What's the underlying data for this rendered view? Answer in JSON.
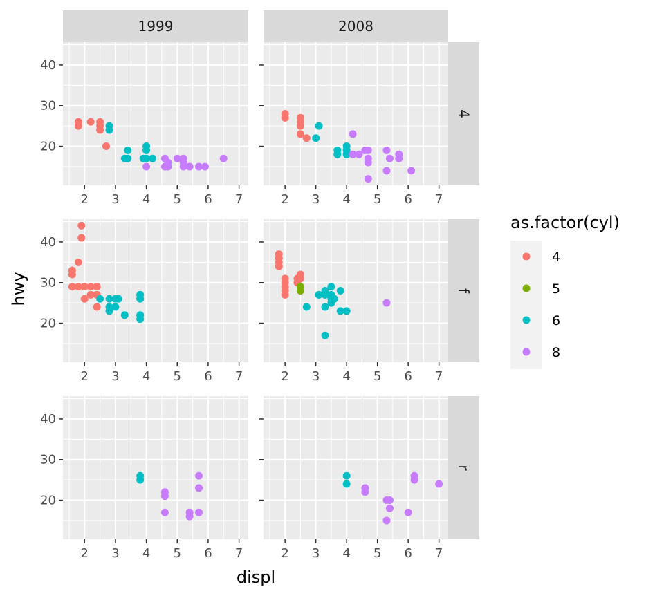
{
  "chart_data": {
    "type": "scatter",
    "xlabel": "displ",
    "ylabel": "hwy",
    "xlim": [
      1.3,
      7.3
    ],
    "ylim": [
      10.4,
      45.6
    ],
    "xticks": [
      2,
      3,
      4,
      5,
      6,
      7
    ],
    "yticks": [
      20,
      30,
      40
    ],
    "facet_cols": [
      "1999",
      "2008"
    ],
    "facet_rows": [
      "4",
      "f",
      "r"
    ],
    "legend": {
      "title": "as.factor(cyl)",
      "position": "right",
      "items": [
        {
          "label": "4",
          "color": "#F8766D"
        },
        {
          "label": "5",
          "color": "#7CAE00"
        },
        {
          "label": "6",
          "color": "#00BFC4"
        },
        {
          "label": "8",
          "color": "#C77CFF"
        }
      ]
    },
    "panels": [
      {
        "col": "1999",
        "row": "4",
        "points": [
          [
            1.8,
            26,
            "4"
          ],
          [
            1.8,
            25,
            "4"
          ],
          [
            2.2,
            26,
            "4"
          ],
          [
            2.5,
            26,
            "4"
          ],
          [
            2.5,
            25,
            "4"
          ],
          [
            2.5,
            24,
            "4"
          ],
          [
            2.7,
            20,
            "4"
          ],
          [
            2.8,
            25,
            "6"
          ],
          [
            2.8,
            24,
            "6"
          ],
          [
            3.4,
            19,
            "6"
          ],
          [
            3.3,
            17,
            "6"
          ],
          [
            3.4,
            17,
            "6"
          ],
          [
            4.0,
            20,
            "6"
          ],
          [
            4.0,
            19,
            "6"
          ],
          [
            4.0,
            17,
            "6"
          ],
          [
            3.9,
            17,
            "6"
          ],
          [
            4.2,
            17,
            "6"
          ],
          [
            4.0,
            15,
            "8"
          ],
          [
            4.6,
            17,
            "8"
          ],
          [
            4.6,
            15,
            "8"
          ],
          [
            4.7,
            16,
            "8"
          ],
          [
            4.7,
            15,
            "8"
          ],
          [
            5.0,
            17,
            "8"
          ],
          [
            5.2,
            17,
            "8"
          ],
          [
            5.2,
            16,
            "8"
          ],
          [
            5.2,
            15,
            "8"
          ],
          [
            5.4,
            15,
            "8"
          ],
          [
            5.7,
            15,
            "8"
          ],
          [
            5.9,
            15,
            "8"
          ],
          [
            6.5,
            17,
            "8"
          ]
        ]
      },
      {
        "col": "2008",
        "row": "4",
        "points": [
          [
            2.0,
            28,
            "4"
          ],
          [
            2.0,
            27,
            "4"
          ],
          [
            2.5,
            27,
            "4"
          ],
          [
            2.5,
            26,
            "4"
          ],
          [
            2.5,
            25,
            "4"
          ],
          [
            2.5,
            23,
            "4"
          ],
          [
            2.7,
            22,
            "4"
          ],
          [
            3.0,
            22,
            "6"
          ],
          [
            3.1,
            25,
            "6"
          ],
          [
            3.7,
            19,
            "6"
          ],
          [
            3.7,
            18,
            "6"
          ],
          [
            4.0,
            20,
            "6"
          ],
          [
            4.0,
            19,
            "6"
          ],
          [
            4.0,
            18,
            "6"
          ],
          [
            4.2,
            23,
            "8"
          ],
          [
            4.2,
            18,
            "8"
          ],
          [
            4.4,
            18,
            "8"
          ],
          [
            4.6,
            19,
            "8"
          ],
          [
            4.7,
            19,
            "8"
          ],
          [
            4.7,
            17,
            "8"
          ],
          [
            4.7,
            16,
            "8"
          ],
          [
            4.7,
            12,
            "8"
          ],
          [
            5.3,
            19,
            "8"
          ],
          [
            5.3,
            14,
            "8"
          ],
          [
            5.4,
            17,
            "8"
          ],
          [
            5.7,
            18,
            "8"
          ],
          [
            5.7,
            17,
            "8"
          ],
          [
            6.1,
            14,
            "8"
          ]
        ]
      },
      {
        "col": "1999",
        "row": "f",
        "points": [
          [
            1.6,
            33,
            "4"
          ],
          [
            1.6,
            32,
            "4"
          ],
          [
            1.6,
            29,
            "4"
          ],
          [
            1.8,
            35,
            "4"
          ],
          [
            1.8,
            29,
            "4"
          ],
          [
            1.9,
            44,
            "4"
          ],
          [
            1.9,
            41,
            "4"
          ],
          [
            2.0,
            29,
            "4"
          ],
          [
            2.0,
            26,
            "4"
          ],
          [
            2.2,
            29,
            "4"
          ],
          [
            2.2,
            27,
            "4"
          ],
          [
            2.4,
            29,
            "4"
          ],
          [
            2.4,
            27,
            "4"
          ],
          [
            2.4,
            24,
            "4"
          ],
          [
            2.5,
            26,
            "6"
          ],
          [
            2.8,
            26,
            "6"
          ],
          [
            2.8,
            24,
            "6"
          ],
          [
            2.8,
            23,
            "6"
          ],
          [
            3.0,
            26,
            "6"
          ],
          [
            3.0,
            24,
            "6"
          ],
          [
            3.1,
            26,
            "6"
          ],
          [
            3.3,
            22,
            "6"
          ],
          [
            3.8,
            27,
            "6"
          ],
          [
            3.8,
            26,
            "6"
          ],
          [
            3.8,
            22,
            "6"
          ],
          [
            3.8,
            21,
            "6"
          ]
        ]
      },
      {
        "col": "2008",
        "row": "f",
        "points": [
          [
            1.8,
            37,
            "4"
          ],
          [
            1.8,
            36,
            "4"
          ],
          [
            1.8,
            35,
            "4"
          ],
          [
            1.8,
            34,
            "4"
          ],
          [
            2.0,
            31,
            "4"
          ],
          [
            2.0,
            30,
            "4"
          ],
          [
            2.0,
            29,
            "4"
          ],
          [
            2.0,
            28,
            "4"
          ],
          [
            2.0,
            27,
            "4"
          ],
          [
            2.4,
            31,
            "4"
          ],
          [
            2.4,
            30,
            "4"
          ],
          [
            2.5,
            32,
            "4"
          ],
          [
            2.5,
            31,
            "4"
          ],
          [
            2.5,
            29,
            "5"
          ],
          [
            2.5,
            28,
            "5"
          ],
          [
            2.7,
            24,
            "6"
          ],
          [
            3.1,
            27,
            "6"
          ],
          [
            3.3,
            28,
            "6"
          ],
          [
            3.3,
            27,
            "6"
          ],
          [
            3.3,
            24,
            "6"
          ],
          [
            3.3,
            17,
            "6"
          ],
          [
            3.5,
            29,
            "6"
          ],
          [
            3.5,
            27,
            "6"
          ],
          [
            3.5,
            26,
            "6"
          ],
          [
            3.5,
            25,
            "6"
          ],
          [
            3.6,
            26,
            "6"
          ],
          [
            3.8,
            28,
            "6"
          ],
          [
            3.8,
            23,
            "6"
          ],
          [
            4.0,
            23,
            "6"
          ],
          [
            5.3,
            25,
            "8"
          ]
        ]
      },
      {
        "col": "1999",
        "row": "r",
        "points": [
          [
            3.8,
            26,
            "6"
          ],
          [
            3.8,
            25,
            "6"
          ],
          [
            4.6,
            22,
            "8"
          ],
          [
            4.6,
            21,
            "8"
          ],
          [
            4.6,
            17,
            "8"
          ],
          [
            5.4,
            17,
            "8"
          ],
          [
            5.4,
            16,
            "8"
          ],
          [
            5.7,
            26,
            "8"
          ],
          [
            5.7,
            23,
            "8"
          ],
          [
            5.7,
            17,
            "8"
          ]
        ]
      },
      {
        "col": "2008",
        "row": "r",
        "points": [
          [
            4.0,
            26,
            "6"
          ],
          [
            4.0,
            24,
            "6"
          ],
          [
            4.6,
            23,
            "8"
          ],
          [
            4.6,
            22,
            "8"
          ],
          [
            5.3,
            20,
            "8"
          ],
          [
            5.3,
            15,
            "8"
          ],
          [
            5.4,
            20,
            "8"
          ],
          [
            5.4,
            18,
            "8"
          ],
          [
            6.0,
            17,
            "8"
          ],
          [
            6.2,
            26,
            "8"
          ],
          [
            6.2,
            25,
            "8"
          ],
          [
            7.0,
            24,
            "8"
          ]
        ]
      }
    ]
  }
}
